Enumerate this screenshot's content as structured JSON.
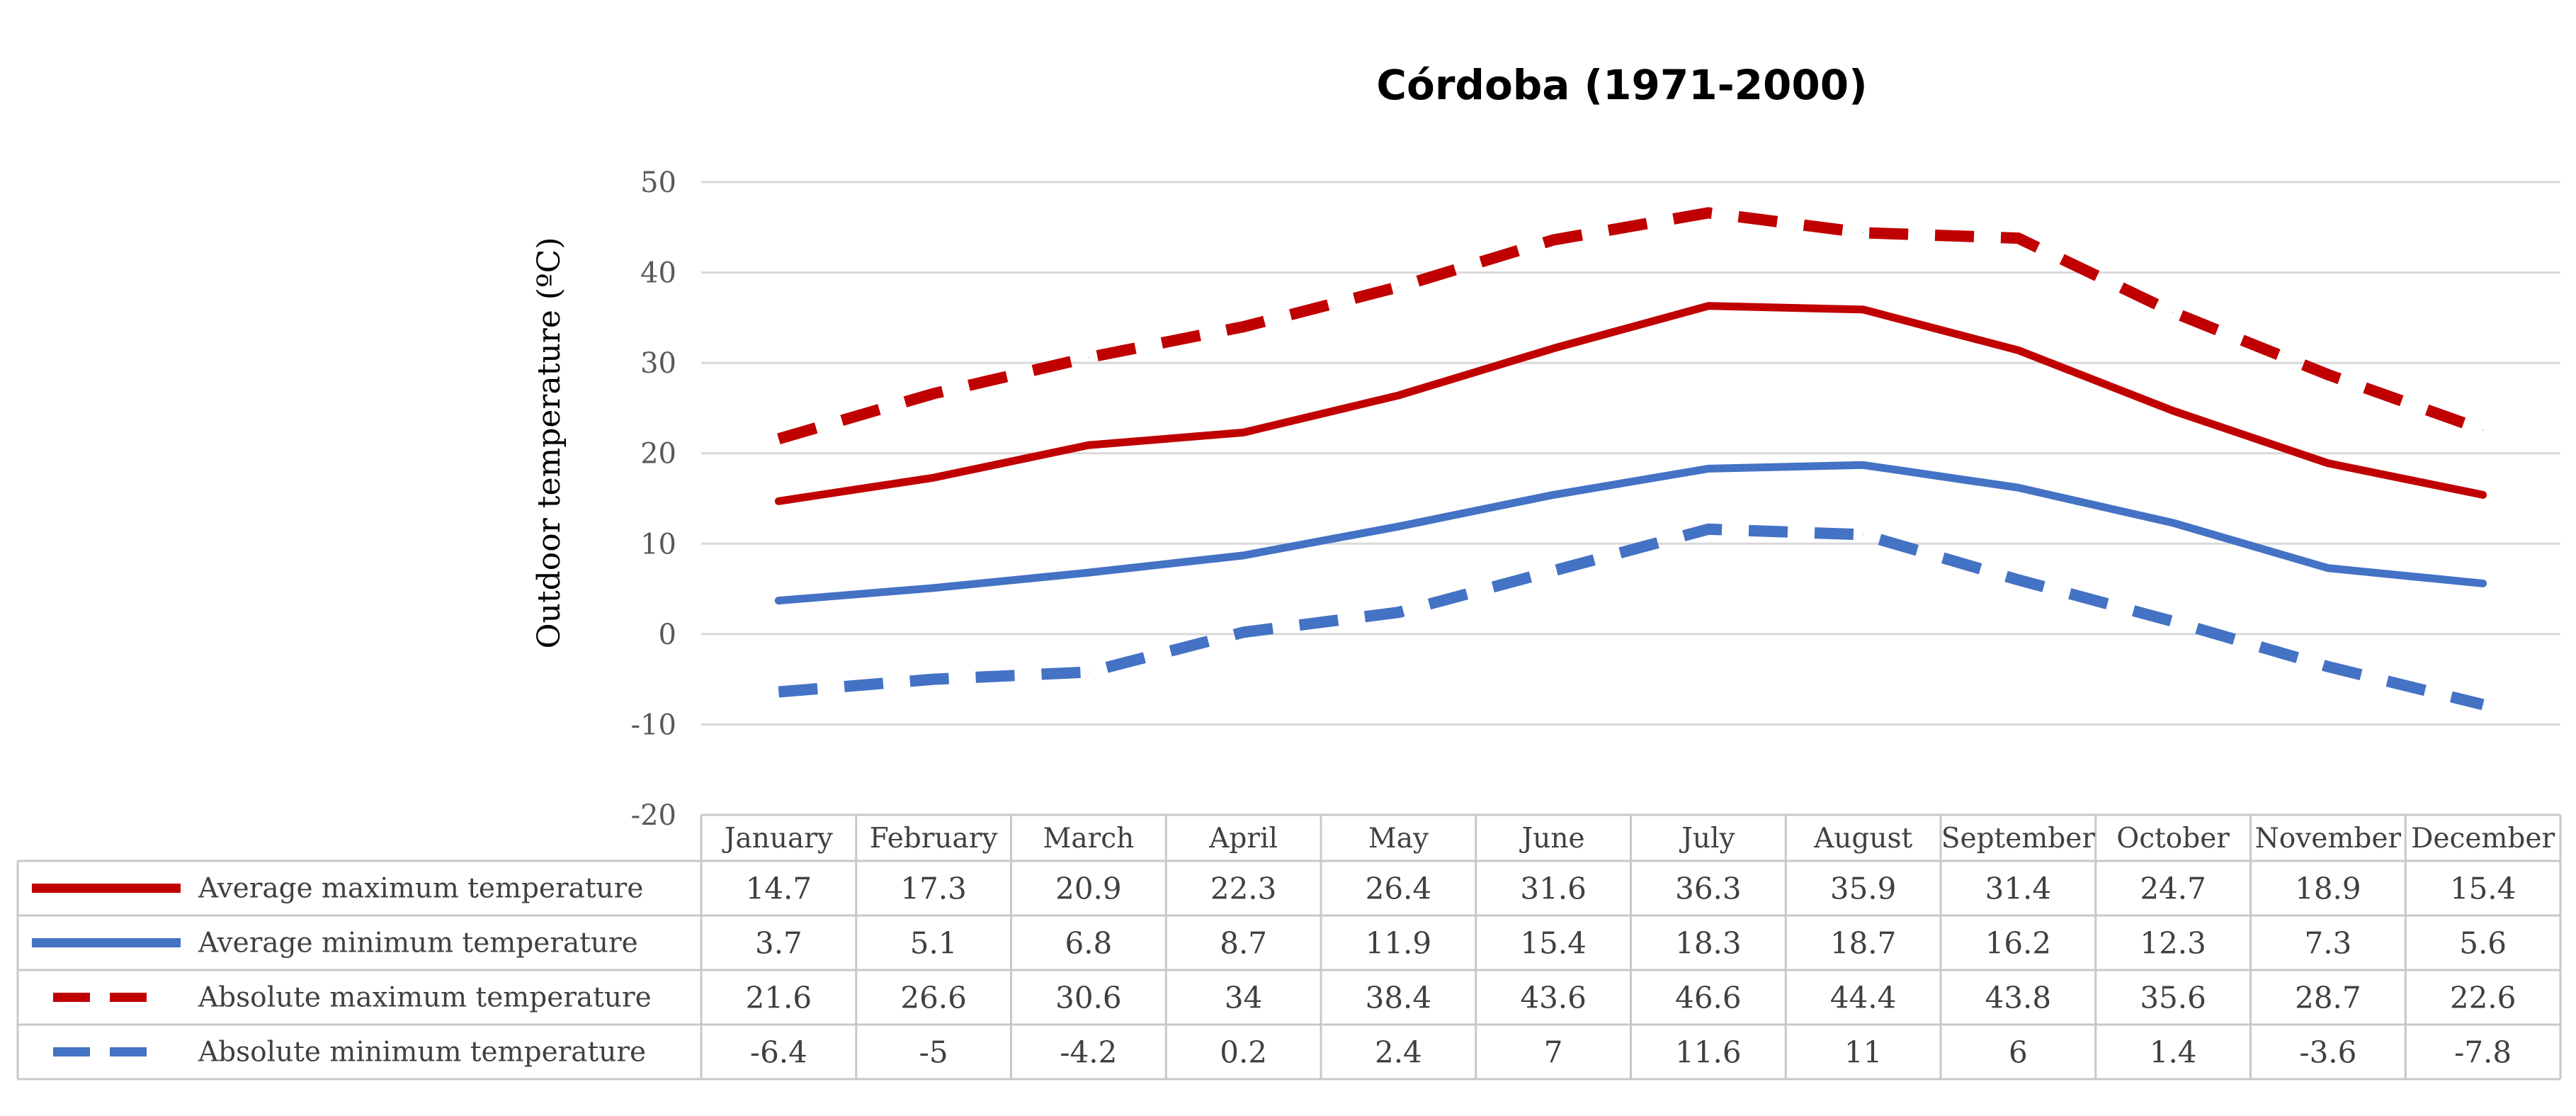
{
  "chart_data": {
    "type": "line",
    "title": "Córdoba (1971-2000)",
    "ylabel": "Outdoor temperature (ºC)",
    "xlabel": "",
    "ylim": [
      -20,
      50
    ],
    "yticks": [
      -20,
      -10,
      0,
      10,
      20,
      30,
      40,
      50
    ],
    "grid": true,
    "legend": "data table below chart",
    "categories": [
      "January",
      "February",
      "March",
      "April",
      "May",
      "June",
      "July",
      "August",
      "September",
      "October",
      "November",
      "December"
    ],
    "series": [
      {
        "name": "Average maximum temperature",
        "color": "#c00000",
        "dash": "solid",
        "values": [
          14.7,
          17.3,
          20.9,
          22.3,
          26.4,
          31.6,
          36.3,
          35.9,
          31.4,
          24.7,
          18.9,
          15.4
        ]
      },
      {
        "name": "Average minimum temperature",
        "color": "#4472c4",
        "dash": "solid",
        "values": [
          3.7,
          5.1,
          6.8,
          8.7,
          11.9,
          15.4,
          18.3,
          18.7,
          16.2,
          12.3,
          7.3,
          5.6
        ]
      },
      {
        "name": "Absolute maximum temperature",
        "color": "#c00000",
        "dash": "dashed",
        "values": [
          21.6,
          26.6,
          30.6,
          34,
          38.4,
          43.6,
          46.6,
          44.4,
          43.8,
          35.6,
          28.7,
          22.6
        ]
      },
      {
        "name": "Absolute minimum temperature",
        "color": "#4472c4",
        "dash": "dashed",
        "values": [
          -6.4,
          -5,
          -4.2,
          0.2,
          2.4,
          7,
          11.6,
          11,
          6,
          1.4,
          -3.6,
          -7.8
        ]
      }
    ]
  }
}
